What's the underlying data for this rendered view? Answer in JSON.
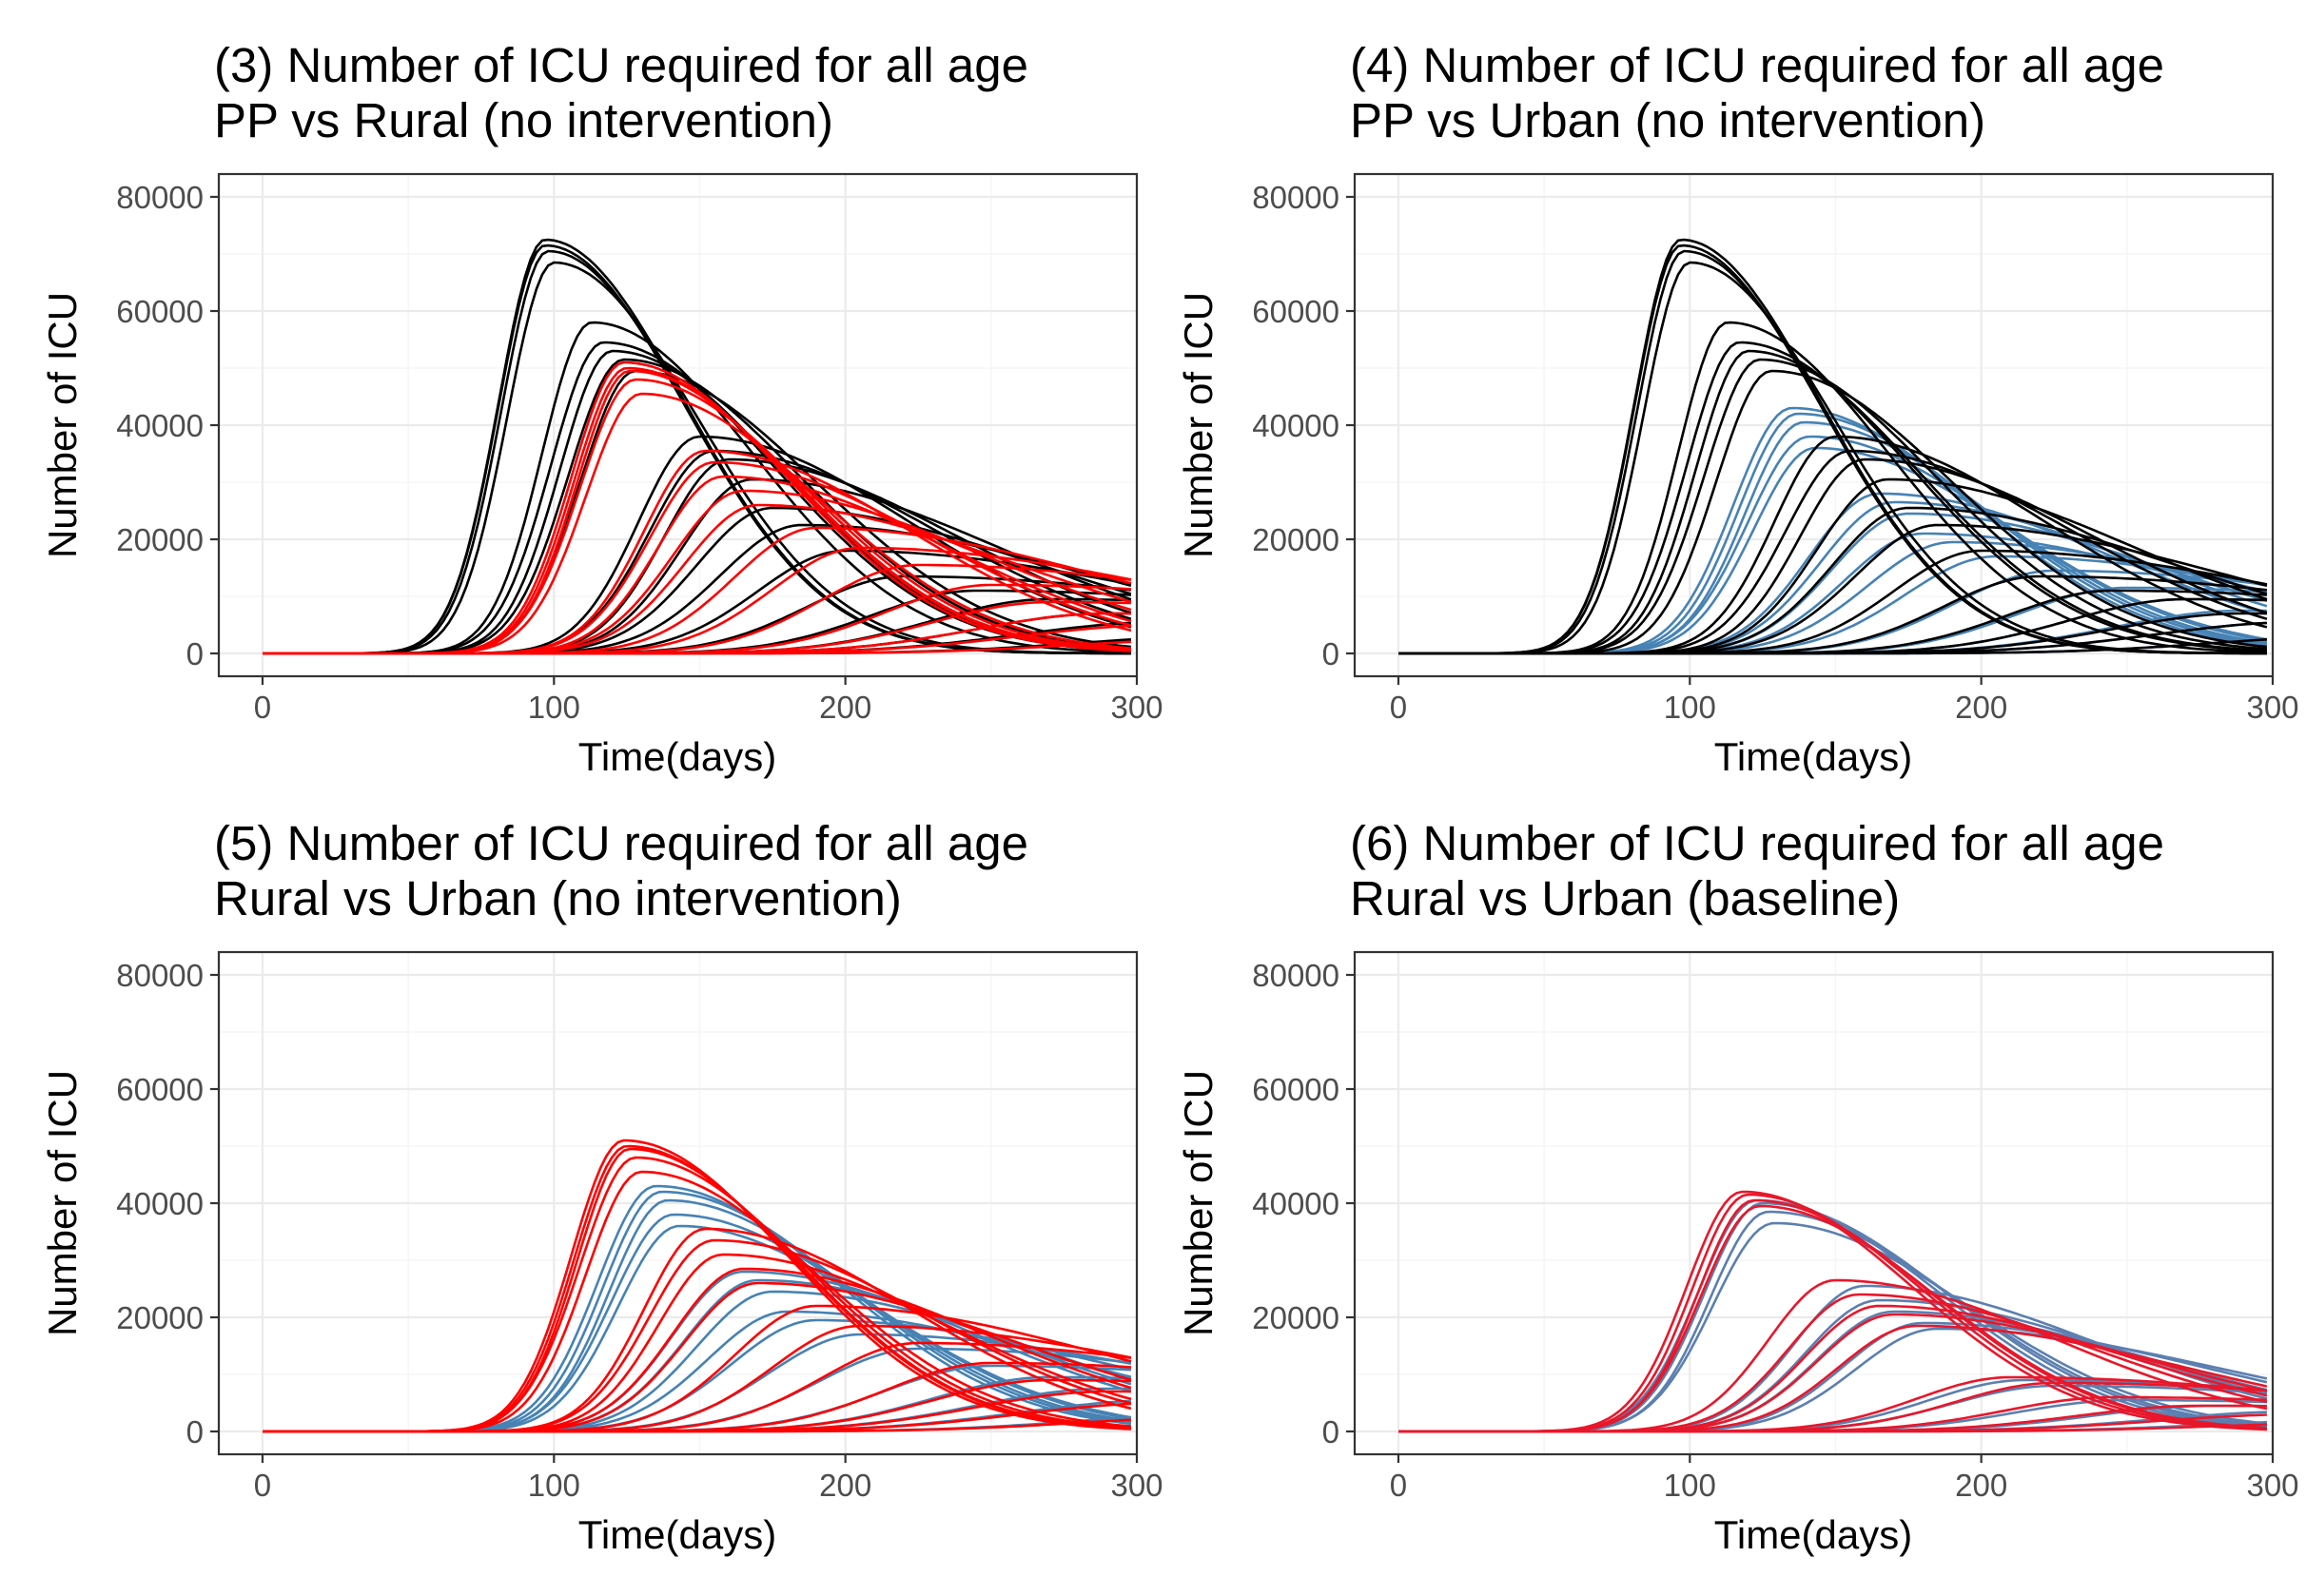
{
  "colors": {
    "pp": "#000000",
    "rural": "#FF0000",
    "urban": "#4682B4",
    "rural_baseline": "#E8172A",
    "urban_baseline": "#5B7FB0",
    "grid_major": "#EBEBEB",
    "grid_minor": "#F5F5F5",
    "panel_border": "#333333",
    "tick_text": "#4D4D4D"
  },
  "chart_data": [
    {
      "type": "line",
      "title_line1": "(3) Number of  ICU required for all age",
      "title_line2": " PP vs Rural (no intervention)",
      "xlabel": "Time(days)",
      "ylabel": "Number of ICU",
      "xlim": [
        -15,
        300
      ],
      "ylim": [
        -4000,
        84000
      ],
      "xticks": [
        0,
        100,
        200,
        300
      ],
      "yticks": [
        0,
        20000,
        40000,
        60000,
        80000
      ],
      "grid": true,
      "legend": "none",
      "series": [
        {
          "color_key": "pp",
          "curves": [
            [
              97,
              72500,
              16,
              48
            ],
            [
              97,
              71500,
              16,
              48
            ],
            [
              98,
              70500,
              16,
              48
            ],
            [
              100,
              68500,
              16,
              49
            ],
            [
              113,
              58000,
              17,
              55
            ],
            [
              117,
              54500,
              18,
              58
            ],
            [
              120,
              53000,
              18,
              58
            ],
            [
              124,
              51500,
              19,
              60
            ],
            [
              128,
              49500,
              19,
              62
            ],
            [
              150,
              38000,
              21,
              72
            ],
            [
              155,
              35500,
              22,
              76
            ],
            [
              160,
              34000,
              22,
              78
            ],
            [
              168,
              30500,
              24,
              85
            ],
            [
              175,
              25500,
              26,
              92
            ],
            [
              185,
              22500,
              28,
              100
            ],
            [
              200,
              18000,
              30,
              110
            ],
            [
              220,
              13500,
              33,
              125
            ],
            [
              245,
              11000,
              36,
              140
            ],
            [
              270,
              9500,
              40,
              150
            ],
            [
              290,
              7000,
              45,
              160
            ],
            [
              310,
              5500,
              50,
              170
            ],
            [
              330,
              3000,
              50,
              170
            ]
          ]
        },
        {
          "color_key": "rural",
          "curves": [
            [
              124,
              51000,
              18,
              56
            ],
            [
              125,
              50000,
              18,
              57
            ],
            [
              126,
              49500,
              18,
              57
            ],
            [
              128,
              48000,
              19,
              58
            ],
            [
              130,
              45500,
              19,
              60
            ],
            [
              152,
              35500,
              21,
              70
            ],
            [
              155,
              33500,
              22,
              73
            ],
            [
              158,
              31000,
              22,
              76
            ],
            [
              165,
              28500,
              24,
              82
            ],
            [
              170,
              26000,
              25,
              88
            ],
            [
              190,
              22000,
              28,
              100
            ],
            [
              205,
              18500,
              30,
              110
            ],
            [
              225,
              15500,
              33,
              120
            ],
            [
              250,
              12000,
              36,
              135
            ],
            [
              270,
              9000,
              40,
              145
            ],
            [
              290,
              7000,
              45,
              160
            ],
            [
              310,
              5000,
              50,
              170
            ],
            [
              330,
              2500,
              50,
              170
            ]
          ]
        }
      ]
    },
    {
      "type": "line",
      "title_line1": "(4) Number of  ICU required for all age",
      "title_line2": " PP vs Urban (no intervention)",
      "xlabel": "Time(days)",
      "ylabel": "Number of ICU",
      "xlim": [
        -15,
        300
      ],
      "ylim": [
        -4000,
        84000
      ],
      "xticks": [
        0,
        100,
        200,
        300
      ],
      "yticks": [
        0,
        20000,
        40000,
        60000,
        80000
      ],
      "grid": true,
      "legend": "none",
      "series": [
        {
          "color_key": "urban",
          "curves": [
            [
              135,
              43000,
              20,
              62
            ],
            [
              137,
              42000,
              20,
              63
            ],
            [
              139,
              40500,
              20,
              64
            ],
            [
              141,
              38000,
              21,
              66
            ],
            [
              143,
              36000,
              21,
              67
            ],
            [
              165,
              28000,
              24,
              80
            ],
            [
              170,
              26500,
              25,
              84
            ],
            [
              175,
              24500,
              26,
              88
            ],
            [
              180,
              21000,
              27,
              94
            ],
            [
              190,
              19500,
              29,
              100
            ],
            [
              205,
              17000,
              31,
              110
            ],
            [
              225,
              14500,
              34,
              120
            ],
            [
              250,
              11500,
              37,
              135
            ],
            [
              270,
              9500,
              40,
              145
            ],
            [
              290,
              7500,
              45,
              160
            ],
            [
              310,
              5500,
              50,
              170
            ],
            [
              330,
              3000,
              50,
              170
            ]
          ]
        },
        {
          "color_key": "pp",
          "curves": [
            [
              97,
              72500,
              16,
              48
            ],
            [
              97,
              71500,
              16,
              48
            ],
            [
              98,
              70500,
              16,
              48
            ],
            [
              100,
              68500,
              16,
              49
            ],
            [
              113,
              58000,
              17,
              55
            ],
            [
              117,
              54500,
              18,
              58
            ],
            [
              120,
              53000,
              18,
              58
            ],
            [
              124,
              51500,
              19,
              60
            ],
            [
              128,
              49500,
              19,
              62
            ],
            [
              150,
              38000,
              21,
              72
            ],
            [
              155,
              35500,
              22,
              76
            ],
            [
              160,
              34000,
              22,
              78
            ],
            [
              168,
              30500,
              24,
              85
            ],
            [
              175,
              25500,
              26,
              92
            ],
            [
              185,
              22500,
              28,
              100
            ],
            [
              200,
              18000,
              30,
              110
            ],
            [
              220,
              13500,
              33,
              125
            ],
            [
              245,
              11000,
              36,
              140
            ],
            [
              270,
              9500,
              40,
              150
            ],
            [
              290,
              7000,
              45,
              160
            ],
            [
              310,
              5500,
              50,
              170
            ],
            [
              330,
              3000,
              50,
              170
            ]
          ]
        }
      ]
    },
    {
      "type": "line",
      "title_line1": "(5) Number of  ICU required for all age",
      "title_line2": " Rural vs Urban (no intervention)",
      "xlabel": "Time(days)",
      "ylabel": "Number of ICU",
      "xlim": [
        -15,
        300
      ],
      "ylim": [
        -4000,
        84000
      ],
      "xticks": [
        0,
        100,
        200,
        300
      ],
      "yticks": [
        0,
        20000,
        40000,
        60000,
        80000
      ],
      "grid": true,
      "legend": "none",
      "series": [
        {
          "color_key": "urban",
          "curves": [
            [
              135,
              43000,
              20,
              62
            ],
            [
              137,
              42000,
              20,
              63
            ],
            [
              139,
              40500,
              20,
              64
            ],
            [
              141,
              38000,
              21,
              66
            ],
            [
              143,
              36000,
              21,
              67
            ],
            [
              165,
              28000,
              24,
              80
            ],
            [
              170,
              26500,
              25,
              84
            ],
            [
              175,
              24500,
              26,
              88
            ],
            [
              180,
              21000,
              27,
              94
            ],
            [
              190,
              19500,
              29,
              100
            ],
            [
              205,
              17000,
              31,
              110
            ],
            [
              225,
              14500,
              34,
              120
            ],
            [
              250,
              11500,
              37,
              135
            ],
            [
              270,
              9500,
              40,
              145
            ],
            [
              290,
              7500,
              45,
              160
            ],
            [
              310,
              5500,
              50,
              170
            ],
            [
              330,
              3000,
              50,
              170
            ]
          ]
        },
        {
          "color_key": "rural",
          "curves": [
            [
              124,
              51000,
              18,
              56
            ],
            [
              125,
              50000,
              18,
              57
            ],
            [
              126,
              49500,
              18,
              57
            ],
            [
              128,
              48000,
              19,
              58
            ],
            [
              130,
              45500,
              19,
              60
            ],
            [
              152,
              35500,
              21,
              70
            ],
            [
              155,
              33500,
              22,
              73
            ],
            [
              158,
              31000,
              22,
              76
            ],
            [
              165,
              28500,
              24,
              82
            ],
            [
              170,
              26000,
              25,
              88
            ],
            [
              190,
              22000,
              28,
              100
            ],
            [
              205,
              18500,
              30,
              110
            ],
            [
              225,
              15500,
              33,
              120
            ],
            [
              250,
              12000,
              36,
              135
            ],
            [
              270,
              9000,
              40,
              145
            ],
            [
              290,
              7000,
              45,
              160
            ],
            [
              310,
              5000,
              50,
              170
            ],
            [
              330,
              2500,
              50,
              170
            ]
          ]
        }
      ]
    },
    {
      "type": "line",
      "title_line1": "(6) Number of  ICU required for all age",
      "title_line2": " Rural vs Urban (baseline)",
      "xlabel": "Time(days)",
      "ylabel": "Number of ICU",
      "xlim": [
        -15,
        300
      ],
      "ylim": [
        -4000,
        84000
      ],
      "xticks": [
        0,
        100,
        200,
        300
      ],
      "yticks": [
        0,
        20000,
        40000,
        60000,
        80000
      ],
      "grid": true,
      "legend": "none",
      "series": [
        {
          "color_key": "urban_baseline",
          "curves": [
            [
              123,
              40500,
              20,
              62
            ],
            [
              125,
              40000,
              20,
              63
            ],
            [
              127,
              38500,
              20,
              64
            ],
            [
              129,
              36500,
              21,
              66
            ],
            [
              160,
              25500,
              24,
              80
            ],
            [
              165,
              23000,
              25,
              84
            ],
            [
              170,
              21000,
              26,
              88
            ],
            [
              180,
              19000,
              27,
              94
            ],
            [
              185,
              18000,
              28,
              98
            ],
            [
              215,
              9000,
              33,
              120
            ],
            [
              225,
              8000,
              35,
              125
            ],
            [
              250,
              5500,
              38,
              135
            ],
            [
              280,
              4500,
              42,
              150
            ],
            [
              310,
              3500,
              50,
              170
            ],
            [
              330,
              2000,
              50,
              170
            ]
          ]
        },
        {
          "color_key": "rural_baseline",
          "curves": [
            [
              118,
              42000,
              19,
              58
            ],
            [
              120,
              41500,
              19,
              59
            ],
            [
              122,
              40500,
              19,
              60
            ],
            [
              124,
              39500,
              20,
              60
            ],
            [
              150,
              26500,
              23,
              76
            ],
            [
              158,
              24000,
              24,
              80
            ],
            [
              165,
              22000,
              25,
              84
            ],
            [
              170,
              20500,
              26,
              88
            ],
            [
              178,
              18500,
              27,
              92
            ],
            [
              210,
              9500,
              32,
              118
            ],
            [
              225,
              8500,
              34,
              124
            ],
            [
              245,
              6000,
              37,
              132
            ],
            [
              275,
              4500,
              42,
              148
            ],
            [
              310,
              3000,
              50,
              170
            ],
            [
              330,
              1500,
              50,
              170
            ]
          ]
        }
      ]
    }
  ]
}
